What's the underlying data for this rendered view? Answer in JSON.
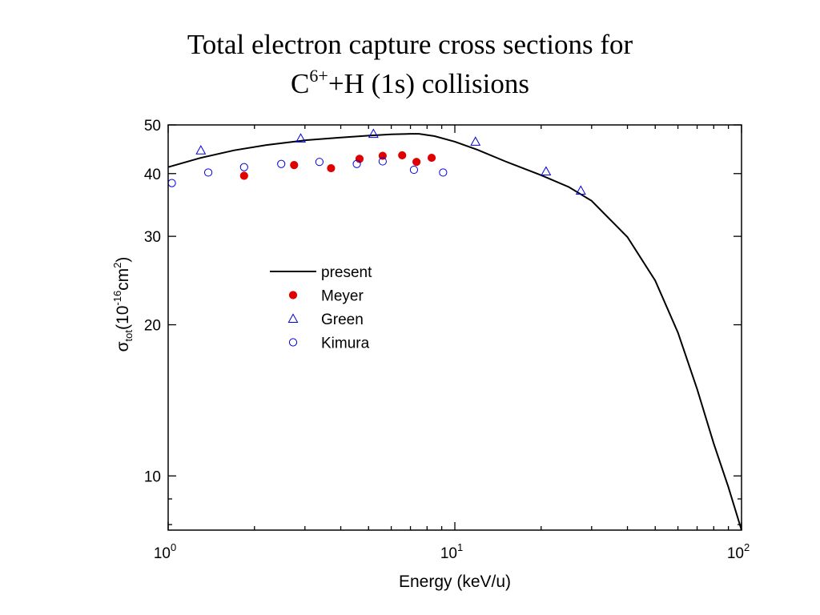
{
  "title": {
    "line1": "Total electron capture cross sections for",
    "line2_prefix": "C",
    "line2_sup": "6+",
    "line2_suffix": "+H (1s) collisions"
  },
  "chart_data": {
    "type": "scatter",
    "title": "Total electron capture cross sections for C6++H (1s) collisions",
    "xlabel": "Energy (keV/u)",
    "ylabel": {
      "sigma": "σ",
      "sub": "tot",
      "open": "(10",
      "sup1": "-16",
      "mid": "cm",
      "sup2": "2",
      "close": ")"
    },
    "xscale": "log",
    "yscale": "log",
    "xlim": [
      1,
      100
    ],
    "ylim": [
      7.8,
      50
    ],
    "x_ticks": [
      {
        "value": 1,
        "base": "10",
        "exp": "0"
      },
      {
        "value": 10,
        "base": "10",
        "exp": "1"
      },
      {
        "value": 100,
        "base": "10",
        "exp": "2"
      }
    ],
    "y_ticks": [
      {
        "value": 10,
        "label": "10"
      },
      {
        "value": 20,
        "label": "20"
      },
      {
        "value": 30,
        "label": "30"
      },
      {
        "value": 40,
        "label": "40"
      },
      {
        "value": 50,
        "label": "50"
      }
    ],
    "grid": false,
    "legend_position": "center-left",
    "series": [
      {
        "name": "present",
        "style": "line",
        "color": "#000000",
        "x": [
          1,
          1.3,
          1.7,
          2.2,
          3,
          4,
          5,
          6,
          7,
          7.5,
          8.5,
          10,
          12,
          15,
          20,
          25,
          30,
          40,
          50,
          60,
          70,
          80,
          90,
          100
        ],
        "y": [
          41.2,
          43,
          44.5,
          45.6,
          46.6,
          47.2,
          47.6,
          47.9,
          48.0,
          48.0,
          47.5,
          46.3,
          44.6,
          42.3,
          39.7,
          37.6,
          35.3,
          29.9,
          24.5,
          19.3,
          14.9,
          11.6,
          9.5,
          7.8
        ]
      },
      {
        "name": "Meyer",
        "style": "filled-circle",
        "color": "#e00000",
        "x": [
          1.84,
          2.75,
          3.7,
          4.65,
          5.6,
          6.55,
          7.35,
          8.3
        ],
        "y": [
          39.6,
          41.6,
          41.0,
          42.8,
          43.4,
          43.5,
          42.2,
          43.0
        ]
      },
      {
        "name": "Green",
        "style": "open-triangle",
        "color": "#0000e0",
        "x": [
          1.3,
          2.9,
          5.2,
          11.8,
          20.8,
          27.5
        ],
        "y": [
          44.5,
          47.0,
          48.0,
          46.3,
          40.4,
          37.0
        ]
      },
      {
        "name": "Kimura",
        "style": "open-circle",
        "color": "#0000e0",
        "x": [
          1.03,
          1.38,
          1.84,
          2.48,
          3.37,
          4.55,
          5.6,
          7.2,
          9.1
        ],
        "y": [
          38.3,
          40.2,
          41.2,
          41.8,
          42.2,
          41.8,
          42.3,
          40.7,
          40.2
        ]
      }
    ]
  }
}
